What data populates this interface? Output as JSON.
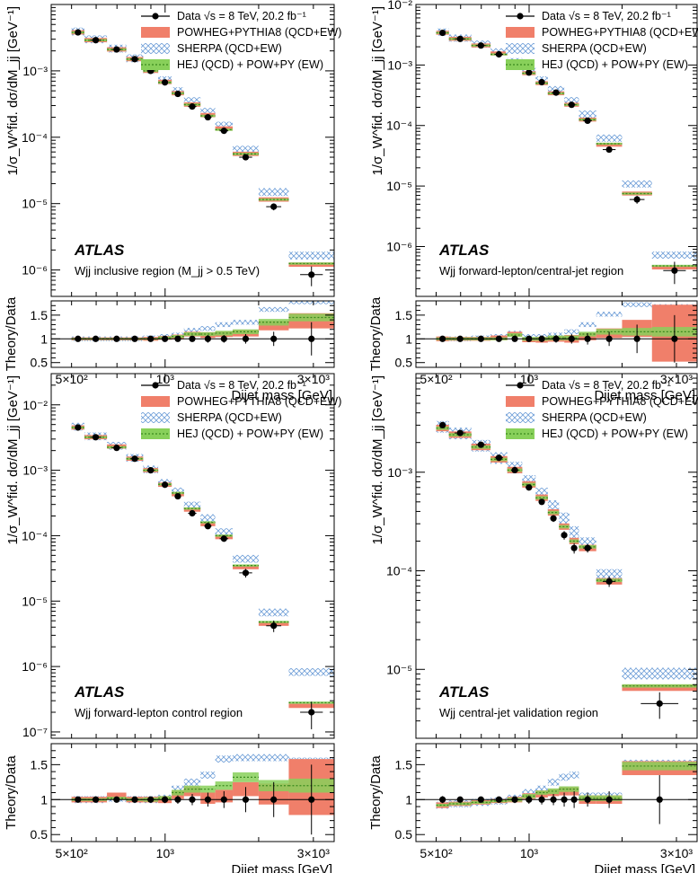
{
  "colors": {
    "data": "#000000",
    "powheg_fill": "#f07f6a",
    "powheg_line": "#e8705a",
    "sherpa_hatch": "#6f9fd8",
    "hej_fill": "#88d05a",
    "hej_line": "#3a8a1e",
    "frame": "#000000"
  },
  "shared": {
    "legend": {
      "data_label": "Data √s = 8 TeV, 20.2 fb⁻¹",
      "powheg_label": "POWHEG+PYTHIA8 (QCD+EW)",
      "sherpa_label": "SHERPA (QCD+EW)",
      "hej_label": "HEJ (QCD) + POW+PY (EW)"
    },
    "ylabel_main": "1/σ_W^fid. dσ/dM_jj [GeV⁻¹]",
    "ylabel_ratio": "Theory/Data",
    "xlabel": "Dijet mass [GeV]",
    "atlas_label": "ATLAS",
    "x_tick_labels": [
      "5×10²",
      "10³",
      "3×10³"
    ],
    "x_tick_values": [
      500,
      1000,
      3000
    ],
    "xlim": [
      430,
      3500
    ],
    "ratio_ylim": [
      0.4,
      1.8
    ],
    "ratio_tick_labels": [
      "0.5",
      "1",
      "1.5"
    ],
    "ratio_tick_values": [
      0.5,
      1,
      1.5
    ]
  },
  "chart_data": [
    {
      "type": "line",
      "title": "Wjj inclusive region (M_jj > 0.5 TeV)",
      "xlabel": "Dijet mass [GeV]",
      "ylabel": "1/σ_W^fid. dσ/dM_jj [GeV⁻¹]",
      "ylim": [
        4e-07,
        0.01
      ],
      "y_tick_labels": [
        "10⁻⁶",
        "10⁻⁵",
        "10⁻⁴",
        "10⁻³"
      ],
      "y_tick_values": [
        1e-06,
        1e-05,
        0.0001,
        0.001
      ],
      "bins": [
        [
          500,
          550
        ],
        [
          550,
          650
        ],
        [
          650,
          750
        ],
        [
          750,
          850
        ],
        [
          850,
          950
        ],
        [
          950,
          1050
        ],
        [
          1050,
          1150
        ],
        [
          1150,
          1300
        ],
        [
          1300,
          1450
        ],
        [
          1450,
          1650
        ],
        [
          1650,
          2000
        ],
        [
          2000,
          2500
        ],
        [
          2500,
          3500
        ]
      ],
      "data": [
        0.0038,
        0.0029,
        0.0021,
        0.0015,
        0.001,
        0.00067,
        0.00045,
        0.00029,
        0.0002,
        0.000125,
        5e-05,
        9e-06,
        8.5e-07
      ],
      "data_err": [
        0.02,
        0.02,
        0.02,
        0.02,
        0.03,
        0.03,
        0.04,
        0.04,
        0.06,
        0.07,
        0.09,
        0.12,
        0.33
      ],
      "powheg": [
        0.0038,
        0.0029,
        0.0021,
        0.0015,
        0.001,
        0.00068,
        0.00046,
        0.00031,
        0.000215,
        0.000135,
        5.6e-05,
        1.15e-05,
        1.2e-06
      ],
      "sherpa": [
        0.0038,
        0.0029,
        0.0021,
        0.0015,
        0.00102,
        0.0007,
        0.00048,
        0.00034,
        0.000235,
        0.000145,
        6.3e-05,
        1.45e-05,
        1.6e-06
      ],
      "hej": [
        0.0038,
        0.0029,
        0.0021,
        0.0015,
        0.001,
        0.00067,
        0.00046,
        0.00031,
        0.00021,
        0.00013,
        5.6e-05,
        1.15e-05,
        1.25e-06
      ],
      "ratio_data_err": [
        0.03,
        0.03,
        0.03,
        0.03,
        0.03,
        0.04,
        0.05,
        0.06,
        0.08,
        0.08,
        0.1,
        0.15,
        0.35
      ],
      "ratio_powheg": [
        1.0,
        1.0,
        1.0,
        1.0,
        1.0,
        1.02,
        1.04,
        1.1,
        1.08,
        1.1,
        1.12,
        1.28,
        1.38
      ],
      "ratio_powheg_err": [
        0.03,
        0.03,
        0.03,
        0.03,
        0.04,
        0.04,
        0.05,
        0.05,
        0.06,
        0.06,
        0.07,
        0.1,
        0.16
      ],
      "ratio_sherpa": [
        1.0,
        1.0,
        1.0,
        1.0,
        1.02,
        1.05,
        1.08,
        1.18,
        1.22,
        1.3,
        1.35,
        1.62,
        1.78
      ],
      "ratio_hej": [
        1.0,
        1.0,
        1.0,
        1.0,
        1.0,
        1.02,
        1.05,
        1.1,
        1.1,
        1.12,
        1.15,
        1.35,
        1.45
      ],
      "ratio_hej_err": [
        0.02,
        0.02,
        0.02,
        0.02,
        0.02,
        0.03,
        0.03,
        0.04,
        0.04,
        0.05,
        0.05,
        0.07,
        0.08
      ]
    },
    {
      "type": "line",
      "title": "Wjj forward-lepton/central-jet region",
      "xlabel": "Dijet mass [GeV]",
      "ylabel": "1/σ_W^fid. dσ/dM_jj [GeV⁻¹]",
      "ylim": [
        1.5e-07,
        0.01
      ],
      "y_tick_labels": [
        "10⁻⁶",
        "10⁻⁵",
        "10⁻⁴",
        "10⁻³",
        "10⁻²"
      ],
      "y_tick_values": [
        1e-06,
        1e-05,
        0.0001,
        0.001,
        0.01
      ],
      "bins": [
        [
          500,
          550
        ],
        [
          550,
          650
        ],
        [
          650,
          750
        ],
        [
          750,
          850
        ],
        [
          850,
          950
        ],
        [
          950,
          1050
        ],
        [
          1050,
          1150
        ],
        [
          1150,
          1300
        ],
        [
          1300,
          1450
        ],
        [
          1450,
          1650
        ],
        [
          1650,
          2000
        ],
        [
          2000,
          2500
        ],
        [
          2500,
          3500
        ]
      ],
      "data": [
        0.0034,
        0.0027,
        0.0021,
        0.0015,
        0.001,
        0.00075,
        0.00052,
        0.00035,
        0.00022,
        0.00012,
        4e-05,
        6e-06,
        4e-07
      ],
      "data_err": [
        0.03,
        0.03,
        0.03,
        0.03,
        0.04,
        0.04,
        0.05,
        0.06,
        0.08,
        0.09,
        0.1,
        0.15,
        0.4
      ],
      "powheg": [
        0.0034,
        0.0027,
        0.0021,
        0.00155,
        0.00105,
        0.00073,
        0.0005,
        0.00034,
        0.00022,
        0.000125,
        4.8e-05,
        7.5e-06,
        4.5e-07
      ],
      "sherpa": [
        0.0034,
        0.0027,
        0.00215,
        0.0016,
        0.0011,
        0.00078,
        0.00055,
        0.00038,
        0.00025,
        0.00015,
        6e-05,
        1.05e-05,
        7e-07
      ],
      "hej": [
        0.0034,
        0.0027,
        0.0021,
        0.0015,
        0.00105,
        0.00073,
        0.0005,
        0.00034,
        0.00022,
        0.000125,
        5e-05,
        7.5e-06,
        4.8e-07
      ],
      "ratio_data_err": [
        0.04,
        0.04,
        0.04,
        0.05,
        0.05,
        0.06,
        0.07,
        0.08,
        0.1,
        0.12,
        0.15,
        0.3,
        0.5
      ],
      "ratio_powheg": [
        1.0,
        1.0,
        1.0,
        1.02,
        1.1,
        0.98,
        0.98,
        1.0,
        1.0,
        1.05,
        1.12,
        1.22,
        1.12
      ],
      "ratio_powheg_err": [
        0.05,
        0.04,
        0.04,
        0.05,
        0.05,
        0.05,
        0.06,
        0.06,
        0.08,
        0.08,
        0.1,
        0.18,
        0.6
      ],
      "ratio_sherpa": [
        1.0,
        1.0,
        1.02,
        1.05,
        1.12,
        1.05,
        1.05,
        1.08,
        1.15,
        1.3,
        1.52,
        1.72,
        1.68
      ],
      "ratio_hej": [
        1.0,
        1.0,
        1.0,
        1.0,
        1.08,
        1.0,
        1.0,
        1.02,
        1.02,
        1.1,
        1.15,
        1.15,
        1.15
      ],
      "ratio_hej_err": [
        0.03,
        0.03,
        0.03,
        0.03,
        0.04,
        0.04,
        0.04,
        0.05,
        0.05,
        0.05,
        0.06,
        0.08,
        0.1
      ]
    },
    {
      "type": "line",
      "title": "Wjj forward-lepton control region",
      "xlabel": "Dijet mass [GeV]",
      "ylabel": "1/σ_W^fid. dσ/dM_jj [GeV⁻¹]",
      "ylim": [
        8e-08,
        0.03
      ],
      "y_tick_labels": [
        "10⁻⁷",
        "10⁻⁶",
        "10⁻⁵",
        "10⁻⁴",
        "10⁻³",
        "10⁻²"
      ],
      "y_tick_values": [
        1e-07,
        1e-06,
        1e-05,
        0.0001,
        0.001,
        0.01
      ],
      "bins": [
        [
          500,
          550
        ],
        [
          550,
          650
        ],
        [
          650,
          750
        ],
        [
          750,
          850
        ],
        [
          850,
          950
        ],
        [
          950,
          1050
        ],
        [
          1050,
          1150
        ],
        [
          1150,
          1300
        ],
        [
          1300,
          1450
        ],
        [
          1450,
          1650
        ],
        [
          1650,
          2000
        ],
        [
          2000,
          2500
        ],
        [
          2500,
          3500
        ]
      ],
      "data": [
        0.0045,
        0.0032,
        0.0022,
        0.0015,
        0.001,
        0.0006,
        0.0004,
        0.00022,
        0.00014,
        9e-05,
        2.7e-05,
        4.2e-06,
        2e-07
      ],
      "data_err": [
        0.02,
        0.02,
        0.03,
        0.03,
        0.04,
        0.04,
        0.05,
        0.07,
        0.09,
        0.1,
        0.15,
        0.2,
        0.45
      ],
      "powheg": [
        0.0045,
        0.0032,
        0.0023,
        0.0015,
        0.001,
        0.0006,
        0.00043,
        0.00025,
        0.00015,
        9.5e-05,
        3.3e-05,
        4.5e-06,
        2.5e-07
      ],
      "sherpa": [
        0.0045,
        0.0032,
        0.0023,
        0.0015,
        0.001,
        0.00062,
        0.00046,
        0.00028,
        0.00018,
        0.00011,
        4.3e-05,
        6.5e-06,
        8e-07
      ],
      "hej": [
        0.0045,
        0.0032,
        0.00225,
        0.0015,
        0.001,
        0.00061,
        0.00045,
        0.00026,
        0.00016,
        0.0001,
        3.5e-05,
        4.8e-06,
        2.8e-07
      ],
      "ratio_data_err": [
        0.03,
        0.03,
        0.03,
        0.04,
        0.04,
        0.05,
        0.06,
        0.08,
        0.1,
        0.12,
        0.18,
        0.25,
        0.5
      ],
      "ratio_powheg": [
        1.0,
        1.0,
        1.05,
        1.0,
        1.0,
        1.0,
        1.07,
        1.12,
        1.02,
        1.05,
        1.15,
        1.08,
        1.18
      ],
      "ratio_powheg_err": [
        0.04,
        0.04,
        0.05,
        0.04,
        0.04,
        0.05,
        0.06,
        0.07,
        0.08,
        0.09,
        0.1,
        0.15,
        0.4
      ],
      "ratio_sherpa": [
        1.0,
        1.0,
        1.02,
        1.0,
        1.0,
        1.02,
        1.15,
        1.25,
        1.35,
        1.58,
        1.6,
        1.6,
        1.55
      ],
      "ratio_hej": [
        1.0,
        1.0,
        1.02,
        1.0,
        1.0,
        1.02,
        1.1,
        1.15,
        1.15,
        1.2,
        1.32,
        1.2,
        1.2
      ],
      "ratio_hej_err": [
        0.02,
        0.02,
        0.02,
        0.02,
        0.03,
        0.03,
        0.04,
        0.05,
        0.05,
        0.06,
        0.07,
        0.08,
        0.1
      ]
    },
    {
      "type": "line",
      "title": "Wjj central-jet validation region",
      "xlabel": "Dijet mass [GeV]",
      "ylabel": "1/σ_W^fid. dσ/dM_jj [GeV⁻¹]",
      "ylim": [
        2e-06,
        0.01
      ],
      "y_tick_labels": [
        "10⁻⁵",
        "10⁻⁴",
        "10⁻³"
      ],
      "y_tick_values": [
        1e-05,
        0.0001,
        0.001
      ],
      "bins": [
        [
          500,
          550
        ],
        [
          550,
          650
        ],
        [
          650,
          750
        ],
        [
          750,
          850
        ],
        [
          850,
          950
        ],
        [
          950,
          1050
        ],
        [
          1050,
          1150
        ],
        [
          1150,
          1250
        ],
        [
          1250,
          1350
        ],
        [
          1350,
          1450
        ],
        [
          1450,
          1650
        ],
        [
          1650,
          2000
        ],
        [
          2000,
          3500
        ]
      ],
      "data": [
        0.003,
        0.0025,
        0.0019,
        0.0014,
        0.00105,
        0.0007,
        0.0005,
        0.00034,
        0.00023,
        0.00017,
        0.00017,
        7.8e-05,
        4.5e-06
      ],
      "data_err": [
        0.05,
        0.03,
        0.03,
        0.03,
        0.04,
        0.05,
        0.06,
        0.08,
        0.1,
        0.12,
        0.1,
        0.12,
        0.3
      ],
      "powheg": [
        0.0028,
        0.0024,
        0.0018,
        0.00135,
        0.00105,
        0.00075,
        0.00055,
        0.00039,
        0.00028,
        0.0002,
        0.00017,
        7.8e-05,
        6.5e-06
      ],
      "sherpa": [
        0.0028,
        0.0024,
        0.0018,
        0.00135,
        0.00108,
        0.00079,
        0.00059,
        0.00044,
        0.00033,
        0.00024,
        0.000185,
        8.8e-05,
        8.8e-06
      ],
      "hej": [
        0.0028,
        0.0024,
        0.0018,
        0.00135,
        0.00105,
        0.00075,
        0.00055,
        0.00039,
        0.00028,
        0.0002,
        0.000175,
        8e-05,
        6.8e-06
      ],
      "ratio_data_err": [
        0.05,
        0.04,
        0.04,
        0.04,
        0.05,
        0.06,
        0.07,
        0.08,
        0.1,
        0.12,
        0.1,
        0.12,
        0.35
      ],
      "ratio_powheg": [
        0.92,
        0.94,
        0.96,
        0.98,
        1.0,
        1.05,
        1.08,
        1.1,
        1.12,
        1.12,
        1.0,
        1.0,
        1.45
      ],
      "ratio_powheg_err": [
        0.04,
        0.03,
        0.03,
        0.03,
        0.04,
        0.04,
        0.05,
        0.05,
        0.06,
        0.06,
        0.06,
        0.06,
        0.1
      ],
      "ratio_sherpa": [
        0.92,
        0.94,
        0.96,
        0.98,
        1.02,
        1.1,
        1.15,
        1.25,
        1.32,
        1.35,
        1.05,
        1.05,
        1.52
      ],
      "ratio_hej": [
        0.92,
        0.94,
        0.96,
        0.98,
        1.0,
        1.05,
        1.1,
        1.12,
        1.15,
        1.15,
        1.02,
        1.02,
        1.48
      ],
      "ratio_hej_err": [
        0.02,
        0.02,
        0.02,
        0.02,
        0.03,
        0.03,
        0.03,
        0.04,
        0.04,
        0.04,
        0.04,
        0.04,
        0.06
      ]
    }
  ]
}
